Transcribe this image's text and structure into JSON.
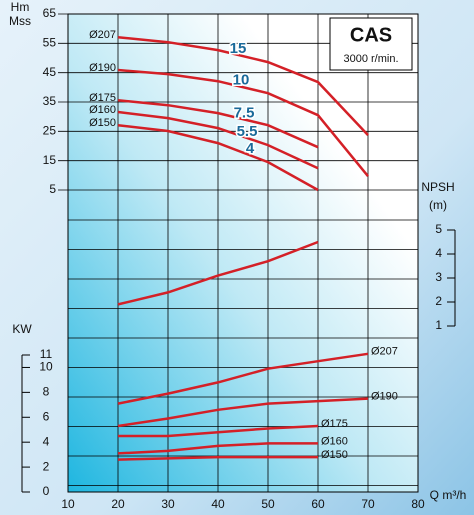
{
  "chart_data": [
    {
      "type": "line",
      "title": "CAS",
      "subtitle": "3000 r/min.",
      "ylabel": "Hm",
      "yunit": "Mss",
      "xlabel": "Q m³/h",
      "xlim": [
        10,
        80
      ],
      "xticks": [
        10,
        20,
        30,
        40,
        50,
        60,
        70,
        80
      ],
      "ylim": [
        5,
        65
      ],
      "yticks": [
        65,
        55,
        45,
        35,
        25,
        15,
        5
      ],
      "grid": true,
      "x": [
        20,
        30,
        40,
        50,
        60,
        70
      ],
      "series": [
        {
          "name": "Ø207",
          "label": "15",
          "color": "#d42027",
          "values": [
            57.1,
            55.4,
            52.7,
            48.6,
            41.8,
            23.7
          ]
        },
        {
          "name": "Ø190",
          "label": "10",
          "color": "#d42027",
          "values": [
            45.9,
            44.5,
            42.1,
            38,
            30.5,
            9.7
          ]
        },
        {
          "name": "Ø175",
          "label": "7.5",
          "color": "#d42027",
          "values": [
            35.6,
            33.9,
            31.2,
            27.1,
            19.6,
            null
          ]
        },
        {
          "name": "Ø160",
          "label": "5.5",
          "color": "#d42027",
          "values": [
            31.6,
            29.5,
            26.1,
            20.3,
            12.4,
            null
          ]
        },
        {
          "name": "Ø150",
          "label": "4",
          "color": "#d42027",
          "values": [
            27.1,
            25.1,
            21,
            14.5,
            5,
            null
          ]
        }
      ]
    },
    {
      "type": "line",
      "ylabel": "NPSH",
      "yunit": "(m)",
      "xlim": [
        10,
        80
      ],
      "ylim": [
        1,
        5
      ],
      "yticks": [
        1,
        2,
        3,
        4,
        5
      ],
      "x": [
        20,
        30,
        40,
        50,
        60
      ],
      "series": [
        {
          "color": "#d42027",
          "values": [
            1.9,
            2.4,
            3.1,
            3.7,
            4.5
          ]
        }
      ]
    },
    {
      "type": "line",
      "ylabel": "KW",
      "xlim": [
        10,
        80
      ],
      "ylim": [
        0,
        11
      ],
      "yticks": [
        0,
        2,
        4,
        6,
        8,
        10,
        11
      ],
      "x": [
        20,
        30,
        40,
        50,
        60,
        70
      ],
      "series": [
        {
          "name": "Ø207",
          "color": "#d42027",
          "values": [
            7.1,
            7.9,
            8.8,
            9.9,
            10.5,
            11.1
          ]
        },
        {
          "name": "Ø190",
          "color": "#d42027",
          "values": [
            5.3,
            5.9,
            6.6,
            7.1,
            7.3,
            7.5
          ]
        },
        {
          "name": "Ø175",
          "color": "#d42027",
          "values": [
            4.5,
            4.5,
            4.8,
            5.1,
            5.3,
            null
          ]
        },
        {
          "name": "Ø160",
          "color": "#d42027",
          "values": [
            3.1,
            3.3,
            3.7,
            3.9,
            3.9,
            null
          ]
        },
        {
          "name": "Ø150",
          "color": "#d42027",
          "values": [
            2.6,
            2.7,
            2.8,
            2.8,
            2.8,
            null
          ]
        }
      ]
    }
  ]
}
